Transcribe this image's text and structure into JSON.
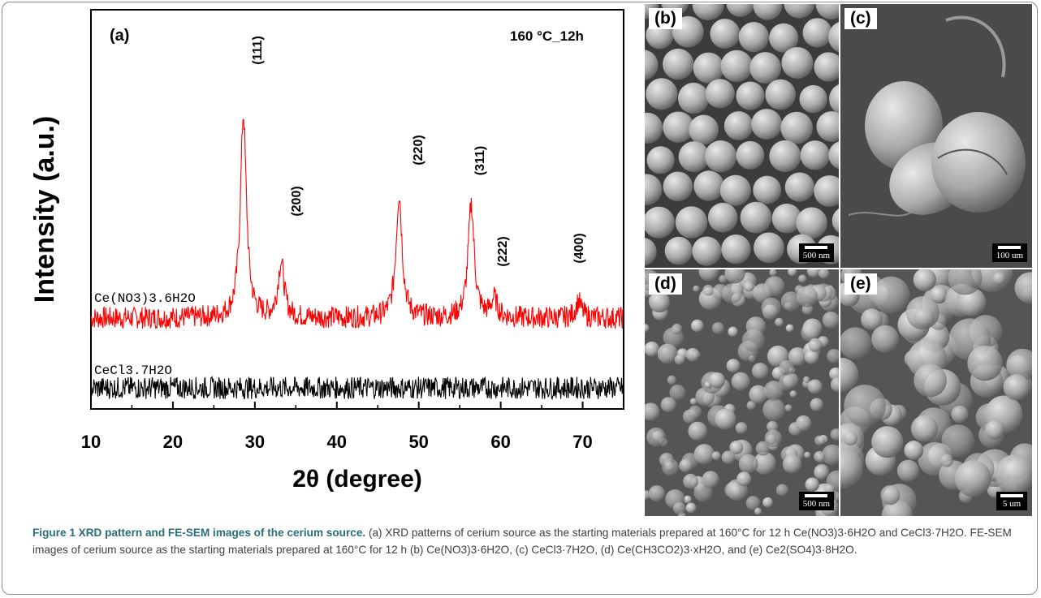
{
  "figure": {
    "panel_a_label": "(a)",
    "condition_label": "160 °C_12h",
    "ylabel": "Intensity (a.u.)",
    "xlabel": "2θ (degree)"
  },
  "chart_data": {
    "type": "line",
    "title": "",
    "xlabel": "2θ (degree)",
    "ylabel": "Intensity (a.u.)",
    "xlim": [
      10,
      75
    ],
    "xticks": [
      10,
      20,
      30,
      40,
      50,
      60,
      70
    ],
    "grid": false,
    "yticks_shown": false,
    "series": [
      {
        "name": "Ce(NO3)3.6H2O",
        "color": "#ff0000",
        "baseline": 0,
        "noise": 2.5,
        "peaks": [
          {
            "hkl": "(111)",
            "x": 28.6,
            "height": 100
          },
          {
            "hkl": "(200)",
            "x": 33.2,
            "height": 27
          },
          {
            "hkl": "(220)",
            "x": 47.6,
            "height": 61
          },
          {
            "hkl": "(311)",
            "x": 56.4,
            "height": 56
          },
          {
            "hkl": "(222)",
            "x": 59.2,
            "height": 9
          },
          {
            "hkl": "(400)",
            "x": 69.5,
            "height": 8
          }
        ]
      },
      {
        "name": "CeCl3.7H2O",
        "color": "#000000",
        "baseline": 0,
        "noise": 2.5,
        "peaks": []
      }
    ],
    "annotations": [
      "(111)",
      "(200)",
      "(220)",
      "(311)",
      "(222)",
      "(400)"
    ]
  },
  "sem_panels": [
    {
      "label": "(b)",
      "scale": "500 nm"
    },
    {
      "label": "(c)",
      "scale": "100 um"
    },
    {
      "label": "(d)",
      "scale": "500 nm"
    },
    {
      "label": "(e)",
      "scale": "5 um"
    }
  ],
  "caption": {
    "title": "Figure 1 XRD pattern and FE-SEM images of the cerium source.",
    "body": " (a) XRD patterns of cerium source as the starting materials prepared at 160°C for 12 h Ce(NO3)3·6H2O and CeCl3·7H2O. FE-SEM images of cerium source as the starting materials prepared at 160°C for 12 h (b) Ce(NO3)3·6H2O, (c) CeCl3·7H2O, (d) Ce(CH3CO2)3·xH2O, and (e) Ce2(SO4)3·8H2O."
  },
  "colors": {
    "red_series": "#ff0000",
    "black_series": "#000000",
    "caption_title": "#2a6e78"
  }
}
